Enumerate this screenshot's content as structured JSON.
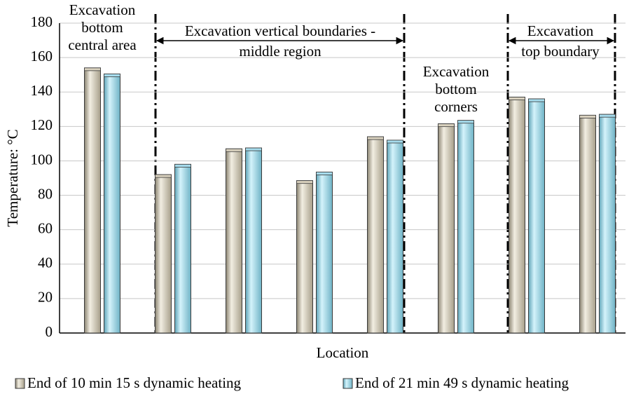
{
  "chart_data": {
    "type": "bar",
    "x_label": "Location",
    "y_label": "Temperature: °C",
    "categories": [
      null,
      null,
      null,
      null,
      null,
      null,
      null,
      null
    ],
    "series": [
      {
        "name": "End of 10 min 15 s dynamic heating",
        "color": "#d9d1be",
        "values": [
          154,
          92,
          107,
          88.5,
          114,
          121.5,
          137,
          126.5
        ]
      },
      {
        "name": "End of 21 min 49 s dynamic heating",
        "color": "#a6dced",
        "values": [
          150.5,
          98,
          107.5,
          93.5,
          112,
          123.5,
          136,
          127
        ]
      }
    ],
    "ylim": [
      0,
      180
    ],
    "yticks": [
      0,
      20,
      40,
      60,
      80,
      100,
      120,
      140,
      160,
      180
    ],
    "grid": true,
    "legend": "bottom",
    "annotations": [
      {
        "lines": [
          "Excavation",
          "bottom",
          "central area"
        ]
      },
      {
        "lines": [
          "Excavation vertical boundaries -",
          "middle region"
        ]
      },
      {
        "lines": [
          "Excavation",
          "bottom",
          "corners"
        ]
      },
      {
        "lines": [
          "Excavation",
          "top boundary"
        ]
      }
    ]
  }
}
